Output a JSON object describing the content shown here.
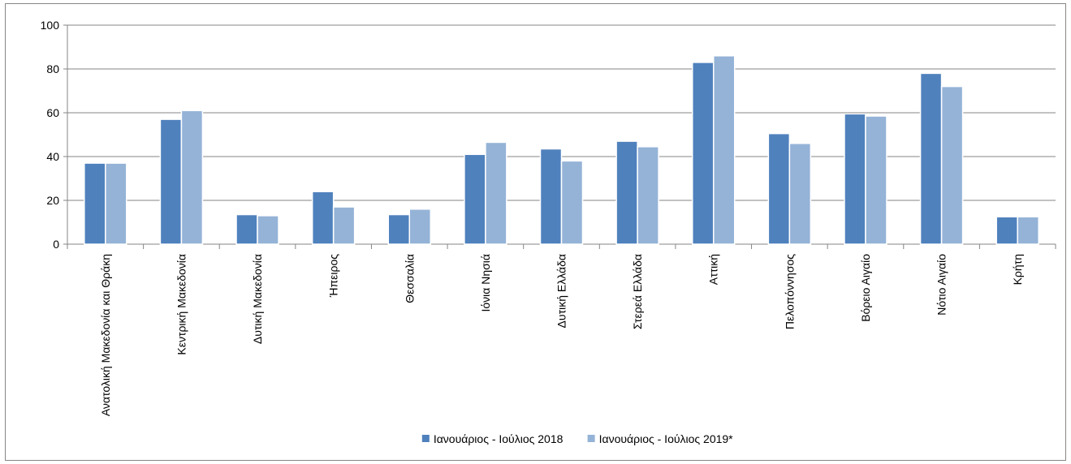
{
  "chart_data": {
    "type": "bar",
    "categories": [
      "Ανατολική Μακεδονία και Θράκη",
      "Κεντρική Μακεδονία",
      "Δυτική Μακεδονία",
      "Ήπειρος",
      "Θεσσαλία",
      "Ιόνια Νησιά",
      "Δυτική Ελλάδα",
      "Στερεά Ελλάδα",
      "Αττική",
      "Πελοπόννησος",
      "Βόρειο Αιγαίο",
      "Νότιο Αιγαίο",
      "Κρήτη"
    ],
    "series": [
      {
        "name": "Ιανουάριος - Ιούλιος 2018",
        "color": "#4f81bd",
        "values": [
          37,
          57,
          13.5,
          24,
          13.5,
          41,
          43.5,
          47,
          83,
          50.5,
          59.5,
          78,
          12.5
        ]
      },
      {
        "name": "Ιανουάριος - Ιούλιος 2019*",
        "color": "#95b3d7",
        "values": [
          37,
          61,
          13,
          17,
          16,
          46.5,
          38,
          44.5,
          86,
          46,
          58.5,
          72,
          12.5
        ]
      }
    ],
    "ylim": [
      0,
      100
    ],
    "yticks": [
      0,
      20,
      40,
      60,
      80,
      100
    ],
    "grid": true,
    "legend": "bottom"
  }
}
